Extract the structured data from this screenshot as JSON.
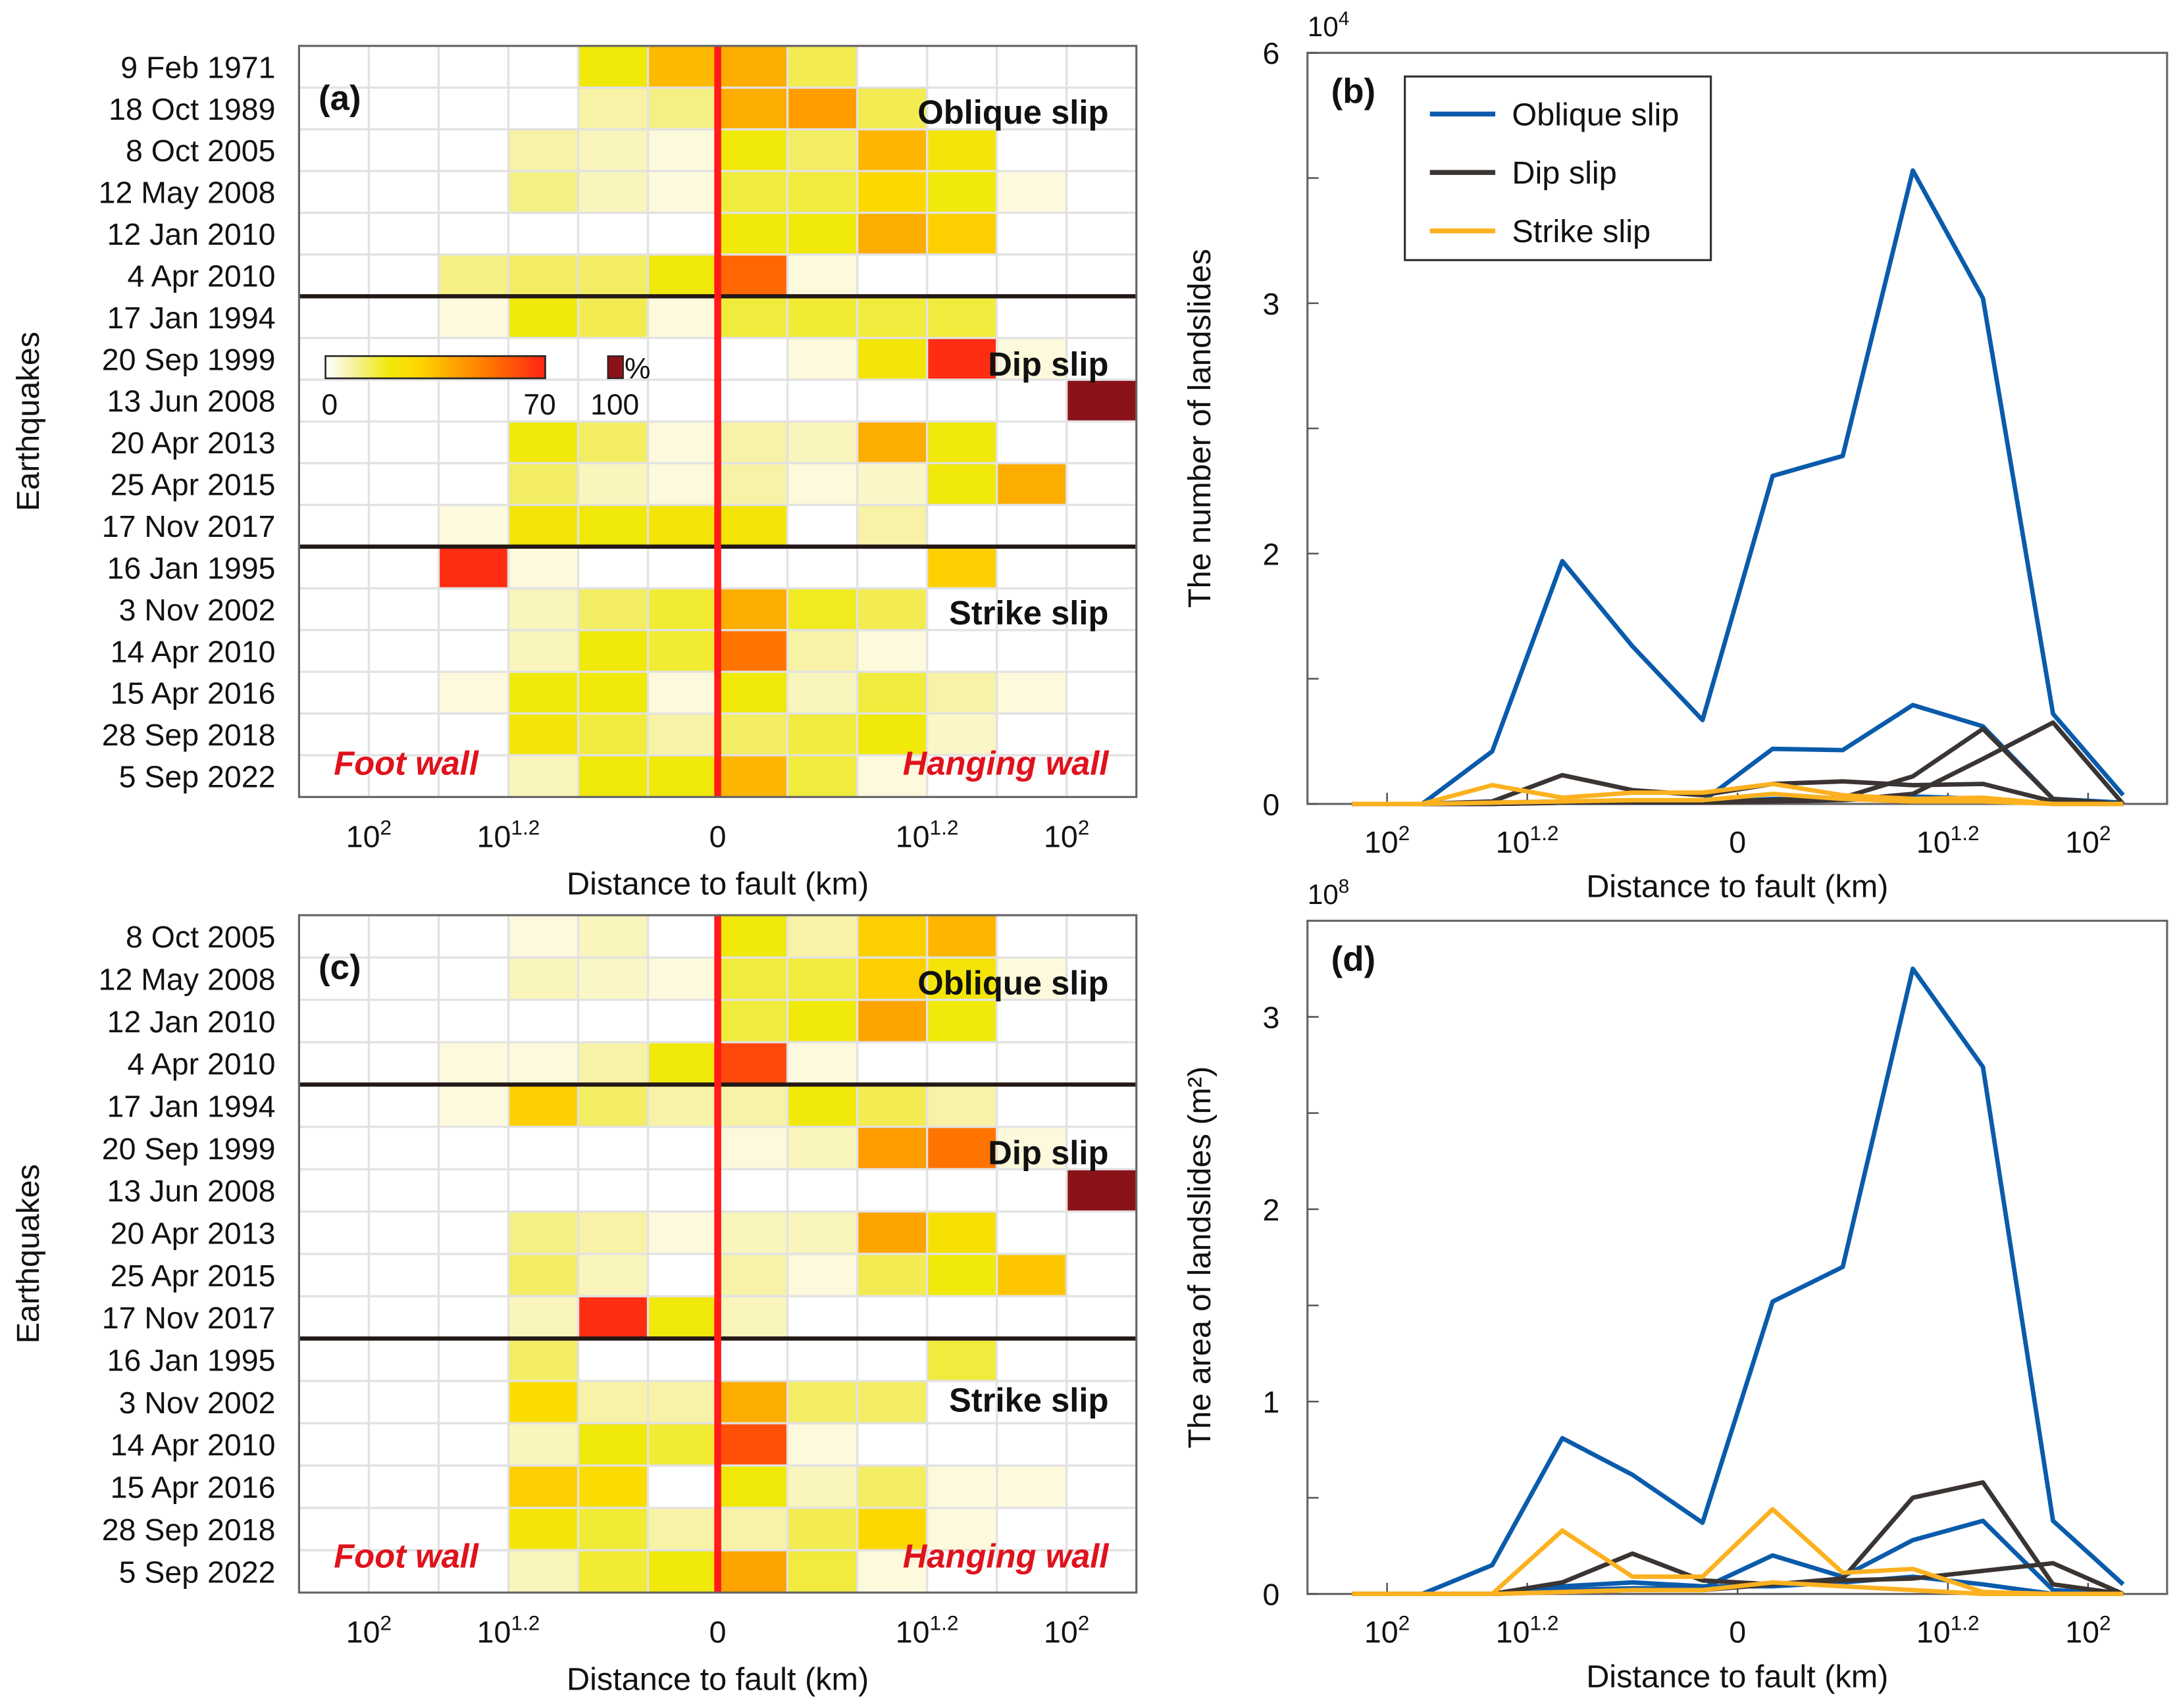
{
  "chart_data": [
    {
      "type": "heatmap",
      "panel_label": "(a)",
      "ylabel": "Earthquakes",
      "xlabel": "Distance to fault (km)",
      "xticks": [
        {
          "base": "10",
          "sup": "2",
          "at_bin_edge": 1
        },
        {
          "base": "10",
          "sup": "1.2",
          "at_bin_edge": 3
        },
        {
          "base": "0",
          "sup": "",
          "at_bin_edge": 6
        },
        {
          "base": "10",
          "sup": "1.2",
          "at_bin_edge": 9
        },
        {
          "base": "10",
          "sup": "2",
          "at_bin_edge": 11
        }
      ],
      "groups": [
        "Oblique slip",
        "Dip slip",
        "Strike slip"
      ],
      "foot_wall": "Foot wall",
      "hanging_wall": "Hanging wall",
      "fault_line_color": "#ff1a1a",
      "colorbar": {
        "min_label": "0",
        "max_label": "70",
        "extra_label": "100",
        "unit": "%",
        "range": [
          0,
          70
        ],
        "extra_value": 100
      },
      "value_unit": "%",
      "rows": [
        {
          "label": "9 Feb 1971",
          "group": 0,
          "values": [
            0,
            0,
            0,
            0,
            20,
            35,
            38,
            13,
            0,
            0,
            0,
            0
          ]
        },
        {
          "label": "18 Oct 1989",
          "group": 0,
          "values": [
            0,
            0,
            0,
            0,
            8,
            10,
            38,
            42,
            13,
            0,
            0,
            0
          ]
        },
        {
          "label": "8 Oct 2005",
          "group": 0,
          "values": [
            0,
            0,
            0,
            8,
            6,
            3,
            20,
            12,
            36,
            22,
            0,
            0
          ]
        },
        {
          "label": "12 May 2008",
          "group": 0,
          "values": [
            0,
            0,
            0,
            10,
            6,
            3,
            15,
            15,
            28,
            20,
            3,
            0
          ]
        },
        {
          "label": "12 Jan 2010",
          "group": 0,
          "values": [
            0,
            0,
            0,
            0,
            0,
            0,
            20,
            20,
            38,
            30,
            0,
            0
          ]
        },
        {
          "label": "4 Apr 2010",
          "group": 0,
          "values": [
            0,
            0,
            10,
            12,
            12,
            20,
            55,
            3,
            0,
            0,
            0,
            0
          ]
        },
        {
          "label": "17 Jan 1994",
          "group": 1,
          "values": [
            0,
            0,
            3,
            20,
            13,
            3,
            15,
            16,
            15,
            15,
            0,
            0
          ]
        },
        {
          "label": "20 Sep 1999",
          "group": 1,
          "values": [
            0,
            0,
            0,
            0,
            0,
            0,
            0,
            3,
            22,
            68,
            3,
            0
          ]
        },
        {
          "label": "13 Jun 2008",
          "group": 1,
          "values": [
            0,
            0,
            0,
            0,
            0,
            0,
            0,
            0,
            0,
            0,
            0,
            100
          ]
        },
        {
          "label": "20 Apr 2013",
          "group": 1,
          "values": [
            0,
            0,
            0,
            20,
            12,
            3,
            8,
            6,
            38,
            20,
            0,
            0
          ]
        },
        {
          "label": "25 Apr 2015",
          "group": 1,
          "values": [
            0,
            0,
            0,
            12,
            6,
            3,
            8,
            3,
            5,
            20,
            38,
            0
          ]
        },
        {
          "label": "17 Nov 2017",
          "group": 1,
          "values": [
            0,
            0,
            3,
            22,
            20,
            22,
            22,
            0,
            8,
            0,
            0,
            0
          ]
        },
        {
          "label": "16 Jan 1995",
          "group": 2,
          "values": [
            0,
            0,
            68,
            3,
            0,
            0,
            0,
            0,
            0,
            30,
            0,
            0
          ]
        },
        {
          "label": "3 Nov 2002",
          "group": 2,
          "values": [
            0,
            0,
            0,
            6,
            12,
            16,
            38,
            18,
            13,
            0,
            0,
            0
          ]
        },
        {
          "label": "14 Apr 2010",
          "group": 2,
          "values": [
            0,
            0,
            0,
            6,
            20,
            16,
            52,
            8,
            3,
            0,
            0,
            0
          ]
        },
        {
          "label": "15 Apr 2016",
          "group": 2,
          "values": [
            0,
            0,
            3,
            20,
            20,
            3,
            20,
            6,
            15,
            8,
            3,
            0
          ]
        },
        {
          "label": "28 Sep 2018",
          "group": 2,
          "values": [
            0,
            0,
            0,
            22,
            15,
            8,
            12,
            15,
            20,
            5,
            0,
            0
          ]
        },
        {
          "label": "5 Sep 2022",
          "group": 2,
          "values": [
            0,
            0,
            0,
            6,
            20,
            20,
            36,
            15,
            3,
            0,
            0,
            0
          ]
        }
      ]
    },
    {
      "type": "line",
      "panel_label": "(b)",
      "ylabel": "The number of landslides",
      "xlabel": "Distance to fault (km)",
      "y_multiplier": {
        "base": "10",
        "sup": "4"
      },
      "yscale": "piecewise",
      "ylim": [
        0,
        6
      ],
      "yticks_labeled": [
        0,
        2,
        3,
        6
      ],
      "yticks_minor": [
        1,
        2.5,
        4.5
      ],
      "xticks": [
        {
          "base": "10",
          "sup": "2",
          "at_bin_edge": 1
        },
        {
          "base": "10",
          "sup": "1.2",
          "at_bin_edge": 3
        },
        {
          "base": "0",
          "sup": "",
          "at_bin_edge": 6
        },
        {
          "base": "10",
          "sup": "1.2",
          "at_bin_edge": 9
        },
        {
          "base": "10",
          "sup": "2",
          "at_bin_edge": 11
        }
      ],
      "legend": {
        "placement": "top-left",
        "items": [
          {
            "name": "Oblique slip",
            "color": "#0a5bab"
          },
          {
            "name": "Dip slip",
            "color": "#3a3432"
          },
          {
            "name": "Strike slip",
            "color": "#fbb120"
          }
        ]
      },
      "series": [
        {
          "type": 0,
          "values": [
            0,
            0,
            0.42,
            1.94,
            1.26,
            0.67,
            2.31,
            2.39,
            4.59,
            3.06,
            0.72,
            0.07
          ]
        },
        {
          "type": 0,
          "values": [
            0,
            0,
            0.01,
            0.02,
            0.02,
            0.02,
            0.44,
            0.43,
            0.79,
            0.62,
            0.04,
            0.01
          ]
        },
        {
          "type": 0,
          "values": [
            0,
            0,
            0,
            0.01,
            0.01,
            0.01,
            0.04,
            0.03,
            0.06,
            0.04,
            0,
            0
          ]
        },
        {
          "type": 1,
          "values": [
            0,
            0,
            0.02,
            0.23,
            0.11,
            0.07,
            0.16,
            0.18,
            0.15,
            0.16,
            0.02,
            0
          ]
        },
        {
          "type": 1,
          "values": [
            0,
            0,
            0,
            0.01,
            0.02,
            0.02,
            0.03,
            0.05,
            0.22,
            0.6,
            0.04,
            0
          ]
        },
        {
          "type": 1,
          "values": [
            0,
            0,
            0,
            0.01,
            0.01,
            0.01,
            0.02,
            0.03,
            0.08,
            0.36,
            0.65,
            0
          ]
        },
        {
          "type": 2,
          "values": [
            0,
            0,
            0.15,
            0.05,
            0.09,
            0.09,
            0.16,
            0.07,
            0.04,
            0.05,
            0,
            0
          ]
        },
        {
          "type": 2,
          "values": [
            0,
            0,
            0.01,
            0.02,
            0.03,
            0.03,
            0.08,
            0.04,
            0.02,
            0.02,
            0,
            0
          ]
        }
      ]
    },
    {
      "type": "heatmap",
      "panel_label": "(c)",
      "ylabel": "Earthquakes",
      "xlabel": "Distance to fault (km)",
      "xticks": [
        {
          "base": "10",
          "sup": "2",
          "at_bin_edge": 1
        },
        {
          "base": "10",
          "sup": "1.2",
          "at_bin_edge": 3
        },
        {
          "base": "0",
          "sup": "",
          "at_bin_edge": 6
        },
        {
          "base": "10",
          "sup": "1.2",
          "at_bin_edge": 9
        },
        {
          "base": "10",
          "sup": "2",
          "at_bin_edge": 11
        }
      ],
      "groups": [
        "Oblique slip",
        "Dip slip",
        "Strike slip"
      ],
      "foot_wall": "Foot wall",
      "hanging_wall": "Hanging wall",
      "fault_line_color": "#ff1a1a",
      "value_unit": "%",
      "rows": [
        {
          "label": "8 Oct 2005",
          "group": 0,
          "values": [
            0,
            0,
            0,
            3,
            6,
            0,
            20,
            8,
            30,
            36,
            0,
            0
          ]
        },
        {
          "label": "12 May 2008",
          "group": 0,
          "values": [
            0,
            0,
            0,
            6,
            5,
            3,
            15,
            15,
            30,
            22,
            3,
            0
          ]
        },
        {
          "label": "12 Jan 2010",
          "group": 0,
          "values": [
            0,
            0,
            0,
            0,
            0,
            0,
            15,
            20,
            40,
            20,
            0,
            0
          ]
        },
        {
          "label": "4 Apr 2010",
          "group": 0,
          "values": [
            0,
            0,
            3,
            3,
            8,
            20,
            62,
            3,
            0,
            0,
            0,
            0
          ]
        },
        {
          "label": "17 Jan 1994",
          "group": 1,
          "values": [
            0,
            0,
            3,
            30,
            12,
            8,
            8,
            20,
            13,
            8,
            0,
            0
          ]
        },
        {
          "label": "20 Sep 1999",
          "group": 1,
          "values": [
            0,
            0,
            0,
            0,
            0,
            0,
            3,
            6,
            42,
            52,
            3,
            0
          ]
        },
        {
          "label": "13 Jun 2008",
          "group": 1,
          "values": [
            0,
            0,
            0,
            0,
            0,
            0,
            0,
            0,
            0,
            0,
            0,
            100
          ]
        },
        {
          "label": "20 Apr 2013",
          "group": 1,
          "values": [
            0,
            0,
            0,
            10,
            8,
            3,
            6,
            6,
            40,
            24,
            0,
            0
          ]
        },
        {
          "label": "25 Apr 2015",
          "group": 1,
          "values": [
            0,
            0,
            0,
            12,
            6,
            0,
            8,
            3,
            13,
            20,
            32,
            0
          ]
        },
        {
          "label": "17 Nov 2017",
          "group": 1,
          "values": [
            0,
            0,
            0,
            6,
            68,
            20,
            6,
            0,
            0,
            0,
            0,
            0
          ]
        },
        {
          "label": "16 Jan 1995",
          "group": 2,
          "values": [
            0,
            0,
            0,
            12,
            0,
            0,
            0,
            0,
            0,
            15,
            0,
            0
          ]
        },
        {
          "label": "3 Nov 2002",
          "group": 2,
          "values": [
            0,
            0,
            0,
            26,
            8,
            8,
            38,
            12,
            12,
            0,
            0,
            0
          ]
        },
        {
          "label": "14 Apr 2010",
          "group": 2,
          "values": [
            0,
            0,
            0,
            6,
            20,
            16,
            60,
            3,
            0,
            0,
            0,
            0
          ]
        },
        {
          "label": "15 Apr 2016",
          "group": 2,
          "values": [
            0,
            0,
            0,
            30,
            26,
            0,
            20,
            6,
            12,
            3,
            3,
            0
          ]
        },
        {
          "label": "28 Sep 2018",
          "group": 2,
          "values": [
            0,
            0,
            0,
            22,
            16,
            8,
            8,
            13,
            28,
            3,
            0,
            0
          ]
        },
        {
          "label": "5 Sep 2022",
          "group": 2,
          "values": [
            0,
            0,
            0,
            6,
            16,
            20,
            40,
            15,
            3,
            0,
            0,
            0
          ]
        }
      ]
    },
    {
      "type": "line",
      "panel_label": "(d)",
      "ylabel": "The area of landslides (m²)",
      "xlabel": "Distance to fault (km)",
      "y_multiplier": {
        "base": "10",
        "sup": "8"
      },
      "yscale": "linear",
      "ylim": [
        0,
        3.5
      ],
      "yticks_labeled": [
        0,
        1,
        2,
        3
      ],
      "yticks_minor": [
        0.5,
        1.5,
        2.5
      ],
      "xticks": [
        {
          "base": "10",
          "sup": "2",
          "at_bin_edge": 1
        },
        {
          "base": "10",
          "sup": "1.2",
          "at_bin_edge": 3
        },
        {
          "base": "0",
          "sup": "",
          "at_bin_edge": 6
        },
        {
          "base": "10",
          "sup": "1.2",
          "at_bin_edge": 9
        },
        {
          "base": "10",
          "sup": "2",
          "at_bin_edge": 11
        }
      ],
      "series_colors": [
        "#0a5bab",
        "#3a3432",
        "#fbb120"
      ],
      "series": [
        {
          "type": 0,
          "values": [
            0,
            0,
            0.15,
            0.81,
            0.62,
            0.37,
            1.52,
            1.7,
            3.25,
            2.74,
            0.38,
            0.05
          ]
        },
        {
          "type": 0,
          "values": [
            0,
            0,
            0,
            0.02,
            0.03,
            0.03,
            0.2,
            0.09,
            0.28,
            0.38,
            0.02,
            0
          ]
        },
        {
          "type": 0,
          "values": [
            0,
            0,
            0,
            0.04,
            0.06,
            0.04,
            0.04,
            0.06,
            0.09,
            0.05,
            0,
            0
          ]
        },
        {
          "type": 1,
          "values": [
            0,
            0,
            0,
            0.06,
            0.21,
            0.07,
            0.05,
            0.08,
            0.5,
            0.58,
            0.05,
            0
          ]
        },
        {
          "type": 1,
          "values": [
            0,
            0,
            0,
            0.01,
            0.02,
            0.02,
            0.05,
            0.07,
            0.08,
            0.12,
            0.16,
            0
          ]
        },
        {
          "type": 2,
          "values": [
            0,
            0,
            0,
            0.33,
            0.09,
            0.09,
            0.44,
            0.11,
            0.13,
            0.01,
            0,
            0
          ]
        },
        {
          "type": 2,
          "values": [
            0,
            0,
            0,
            0.01,
            0.02,
            0.02,
            0.06,
            0.04,
            0.02,
            0,
            0,
            0
          ]
        }
      ]
    }
  ]
}
